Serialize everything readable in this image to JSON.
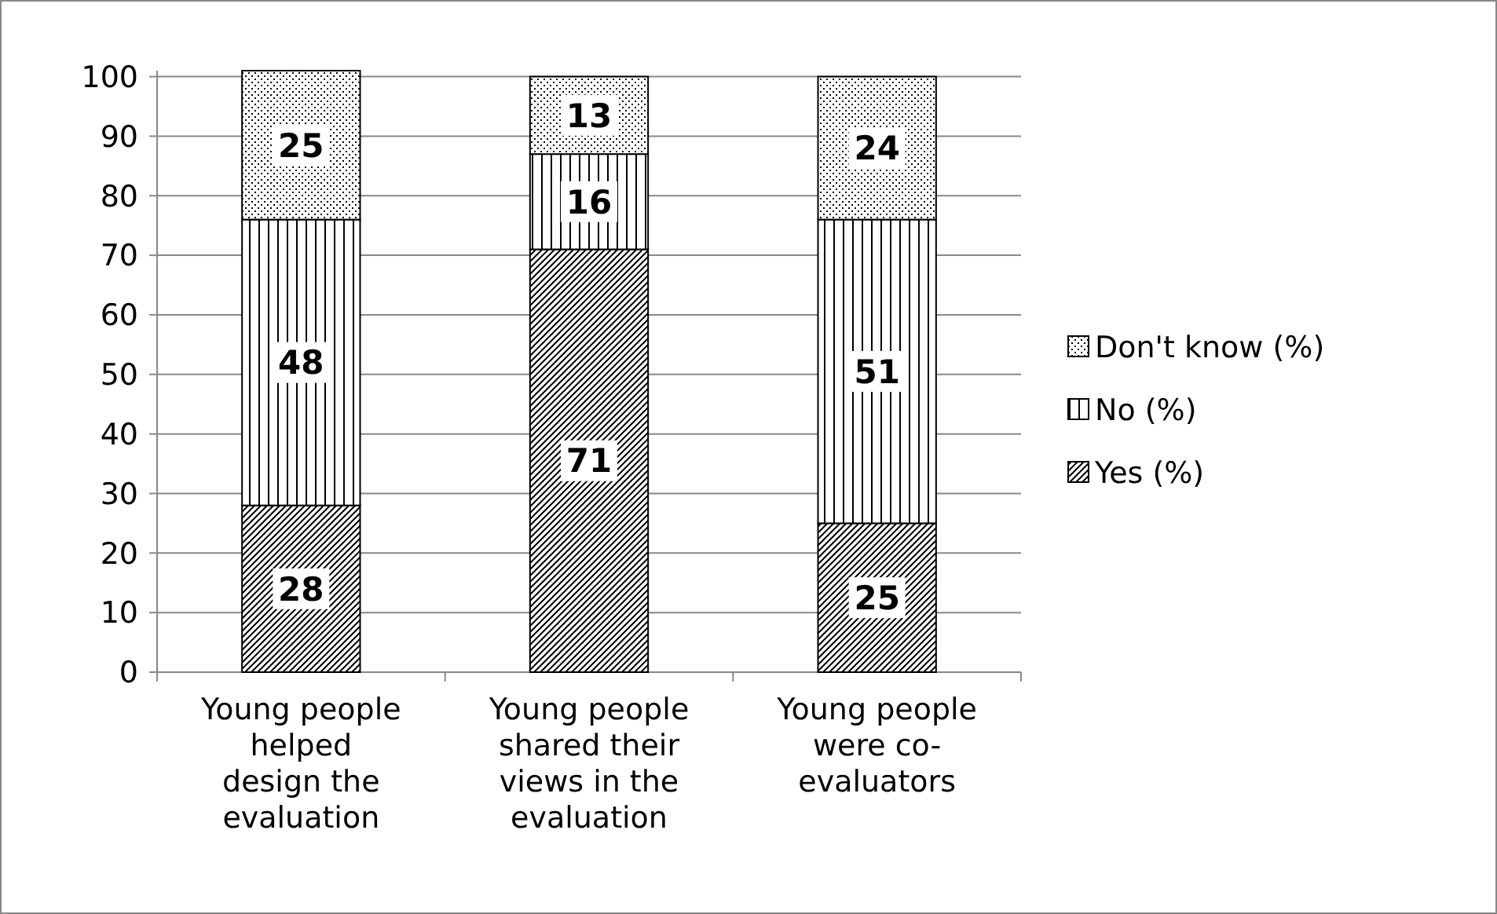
{
  "chart_data": {
    "type": "bar",
    "stacked": true,
    "categories": [
      "Young people helped design the evaluation",
      "Young people shared their views in the evaluation",
      "Young people were co-evaluators"
    ],
    "series": [
      {
        "name": "Yes (%)",
        "color": "#000000",
        "values": [
          28,
          71,
          25
        ]
      },
      {
        "name": "No (%)",
        "color": "#000000",
        "values": [
          48,
          16,
          51
        ]
      },
      {
        "name": "Don't know (%)",
        "color": "#000000",
        "values": [
          25,
          13,
          24
        ]
      }
    ],
    "ylim": [
      0,
      101
    ],
    "yticks": [
      0,
      10,
      20,
      30,
      40,
      50,
      60,
      70,
      80,
      90,
      100
    ],
    "grid": "y",
    "legend": "right",
    "data_labels": true
  }
}
